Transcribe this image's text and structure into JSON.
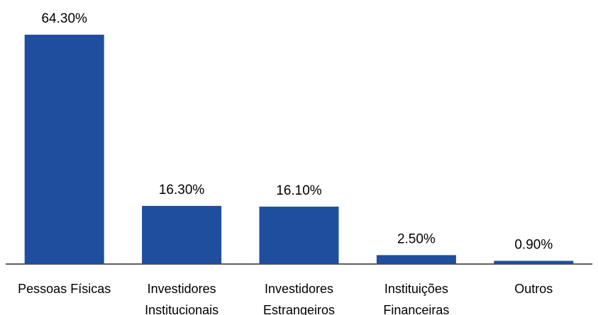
{
  "chart_data": {
    "type": "bar",
    "categories": [
      "Pessoas Físicas",
      "Investidores Institucionais",
      "Investidores Estrangeiros",
      "Instituições Financeiras",
      "Outros"
    ],
    "values": [
      64.3,
      16.3,
      16.1,
      2.5,
      0.9
    ],
    "value_labels": [
      "64.30%",
      "16.30%",
      "16.10%",
      "2.50%",
      "0.90%"
    ],
    "color": "#1f4e9e"
  }
}
